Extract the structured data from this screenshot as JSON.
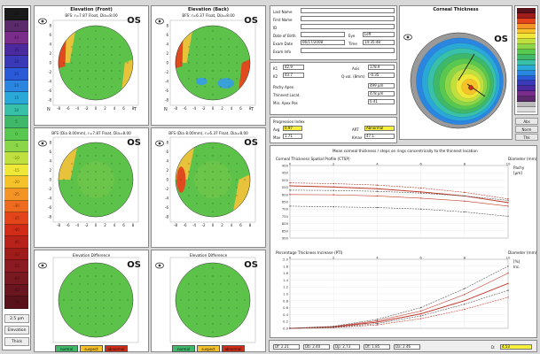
{
  "left_scale": {
    "cells": [
      "50",
      "45",
      "40",
      "35",
      "30",
      "25",
      "20",
      "15",
      "10",
      "5",
      "0",
      "-5",
      "-10",
      "-15",
      "-20",
      "-25",
      "-30",
      "-35",
      "-40",
      "-45",
      "-50",
      "-55",
      "-60",
      "-65",
      "-70"
    ],
    "colors": [
      "#1a1a1a",
      "#5a2a6a",
      "#7a2d8a",
      "#4b2aa0",
      "#3a3ab8",
      "#2a5ad8",
      "#2a86e0",
      "#2aa8d8",
      "#38c0a8",
      "#3fb86a",
      "#58c850",
      "#8ad648",
      "#c0e040",
      "#f0e838",
      "#f6c22a",
      "#f39424",
      "#ee6a1e",
      "#e4441a",
      "#d12c18",
      "#b8221a",
      "#a01c1a",
      "#8c1a22",
      "#781820",
      "#6a1620",
      "#5a121a"
    ],
    "foot": [
      "2.5 µm",
      "Elevation",
      "Thick"
    ]
  },
  "elevation_front": {
    "title": "Elevation (Front)",
    "subtitle": "BFS: r=7.87 Float, Dia=8.00",
    "eye": "OS",
    "axis_ticks": [
      "-8",
      "-6",
      "-4",
      "-2",
      "0",
      "2",
      "4",
      "6",
      "8"
    ],
    "bottom_left": "N",
    "bottom_right": "T",
    "mid_subtitle": "BFS (Dia 8.00mm), r=7.87 Float, Dia=8.00",
    "diff_title": "Elevation Difference"
  },
  "elevation_back": {
    "title": "Elevation (Back)",
    "subtitle": "BFS: r=6.37 Float, Dia=8.00",
    "eye": "OS",
    "axis_ticks": [
      "-8",
      "-6",
      "-4",
      "-2",
      "0",
      "2",
      "4",
      "6",
      "8"
    ],
    "bottom_left": "N",
    "bottom_right": "T",
    "mid_subtitle": "BFS (Dia 8.00mm), r=6.37 Float, Dia=8.00",
    "diff_title": "Elevation Difference"
  },
  "patient": {
    "labels": [
      "Last Name",
      "First Name",
      "ID",
      "Date of Birth",
      "Exam Date",
      "Exam Info"
    ],
    "eye_label": "Eye",
    "eye_value": "Left",
    "time_label": "Time",
    "time_value": "14:35:48",
    "date_value": "06/17/2008",
    "k1_label": "K1",
    "k1": "42.9",
    "k2_label": "K2",
    "k2": "43.7",
    "axis_label": "Axis",
    "axis_value": "178.9",
    "q_label": "Q-val. (8mm)",
    "q_value": "-0.35",
    "pachy_label": "Pachy Apex",
    "pachy_value": "499 µm",
    "thinnest_label": "Thinnest Locat.",
    "thinnest_value": "478 µm",
    "min_label": "Min. Apex Pos",
    "min_value": "0.41",
    "prog_label": "Progression Index",
    "avg_label": "Avg",
    "avg": "0.97",
    "max_label": "Max",
    "max": "1.71",
    "ambr_label": "ART",
    "ambr": "Abnormal",
    "kmax_label": "Kmax",
    "kmax": "47.1"
  },
  "corneal_thickness": {
    "title": "Corneal Thickness",
    "eye": "OS",
    "scale_colors": [
      "#5a121a",
      "#a01c1a",
      "#e4441a",
      "#f39424",
      "#f6c22a",
      "#f0e838",
      "#c0e040",
      "#8ad648",
      "#58c850",
      "#3fb86a",
      "#38c0a8",
      "#2aa8d8",
      "#2a86e0",
      "#2a5ad8",
      "#3a3ab8",
      "#4b2aa0",
      "#7a2d8a",
      "#5a2a6a",
      "#bbbbbb",
      "#dddddd"
    ],
    "buttons": [
      "Abs",
      "Norm",
      "Thk"
    ]
  },
  "charts": {
    "header": "Mean corneal thickness / steps on rings concentrically to the thinnest location",
    "top": {
      "title": "Corneal Thickness Spatial Profile (CTSP)",
      "y_ticks": [
        "900",
        "850",
        "800",
        "750",
        "700",
        "650",
        "600",
        "550",
        "500",
        "450",
        "400"
      ],
      "x_ticks": [
        "0",
        "2",
        "4",
        "6",
        "8",
        "10"
      ],
      "legend": "Diameter (mm)",
      "side": [
        "Pachy",
        "[µm]"
      ]
    },
    "bottom": {
      "title": "Percentage Thickness Increase (PTI)",
      "y_ticks": [
        "0.0",
        "0.2",
        "0.4",
        "0.6",
        "0.8",
        "1.0",
        "1.2",
        "1.4",
        "1.6",
        "1.8",
        "2.0"
      ],
      "x_ticks": [
        "0",
        "2",
        "4",
        "6",
        "8",
        "10"
      ],
      "legend": "Diameter (mm)",
      "side": [
        "[%]",
        "Inc."
      ]
    }
  },
  "chart_data": [
    {
      "type": "line",
      "title": "Corneal Thickness Spatial Profile (CTSP)",
      "x": [
        0,
        2,
        4,
        6,
        8,
        10
      ],
      "xlim": [
        0,
        10
      ],
      "ylim": [
        400,
        900
      ],
      "series": [
        {
          "values": [
            780,
            775,
            765,
            745,
            715,
            670
          ]
        },
        {
          "values": [
            760,
            752,
            740,
            718,
            690,
            645
          ]
        },
        {
          "values": [
            730,
            728,
            722,
            710,
            690,
            660
          ]
        },
        {
          "values": [
            700,
            698,
            690,
            675,
            655,
            620
          ]
        },
        {
          "values": [
            620,
            615,
            610,
            600,
            580,
            550
          ]
        }
      ]
    },
    {
      "type": "line",
      "title": "Percentage Thickness Increase (PTI)",
      "x": [
        0,
        2,
        4,
        6,
        8,
        10
      ],
      "xlim": [
        0,
        10
      ],
      "ylim": [
        0.0,
        2.0
      ],
      "series": [
        {
          "values": [
            0.0,
            0.02,
            0.1,
            0.28,
            0.55,
            0.9
          ]
        },
        {
          "values": [
            0.0,
            0.04,
            0.18,
            0.42,
            0.8,
            1.3
          ]
        },
        {
          "values": [
            0.0,
            0.03,
            0.14,
            0.36,
            0.7,
            1.1
          ]
        },
        {
          "values": [
            0.0,
            0.05,
            0.22,
            0.5,
            0.98,
            1.6
          ]
        },
        {
          "values": [
            0.0,
            0.06,
            0.26,
            0.6,
            1.15,
            1.8
          ]
        }
      ]
    }
  ],
  "bottom_bar": {
    "fields": [
      "Df: 2.21",
      "Db: 2.40",
      "Dp: 2.73",
      "Dt: 1.85",
      "Da: 2.46"
    ],
    "final_label": "D:",
    "final_value": "4.53"
  },
  "legend_boxes": [
    "normal",
    "suspect",
    "abnormal"
  ],
  "legend_colors": [
    "#3fb86a",
    "#f6c22a",
    "#d12c18"
  ]
}
